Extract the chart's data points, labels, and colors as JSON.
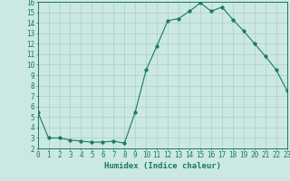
{
  "x": [
    0,
    1,
    2,
    3,
    4,
    5,
    6,
    7,
    8,
    9,
    10,
    11,
    12,
    13,
    14,
    15,
    16,
    17,
    18,
    19,
    20,
    21,
    22,
    23
  ],
  "y": [
    5.5,
    3.0,
    3.0,
    2.8,
    2.7,
    2.6,
    2.6,
    2.7,
    2.5,
    5.5,
    9.5,
    11.8,
    14.2,
    14.4,
    15.1,
    15.9,
    15.1,
    15.5,
    14.3,
    13.2,
    12.0,
    10.8,
    9.5,
    7.5
  ],
  "xlabel": "Humidex (Indice chaleur)",
  "xlim": [
    0,
    23
  ],
  "ylim": [
    2,
    16
  ],
  "yticks": [
    2,
    3,
    4,
    5,
    6,
    7,
    8,
    9,
    10,
    11,
    12,
    13,
    14,
    15,
    16
  ],
  "xticks": [
    0,
    1,
    2,
    3,
    4,
    5,
    6,
    7,
    8,
    9,
    10,
    11,
    12,
    13,
    14,
    15,
    16,
    17,
    18,
    19,
    20,
    21,
    22,
    23
  ],
  "line_color": "#1a7a5e",
  "marker_size": 2.5,
  "bg_color": "#cce8e4",
  "grid_color": "#aacfca",
  "font_size": 5.5,
  "xlabel_fontsize": 6.5
}
